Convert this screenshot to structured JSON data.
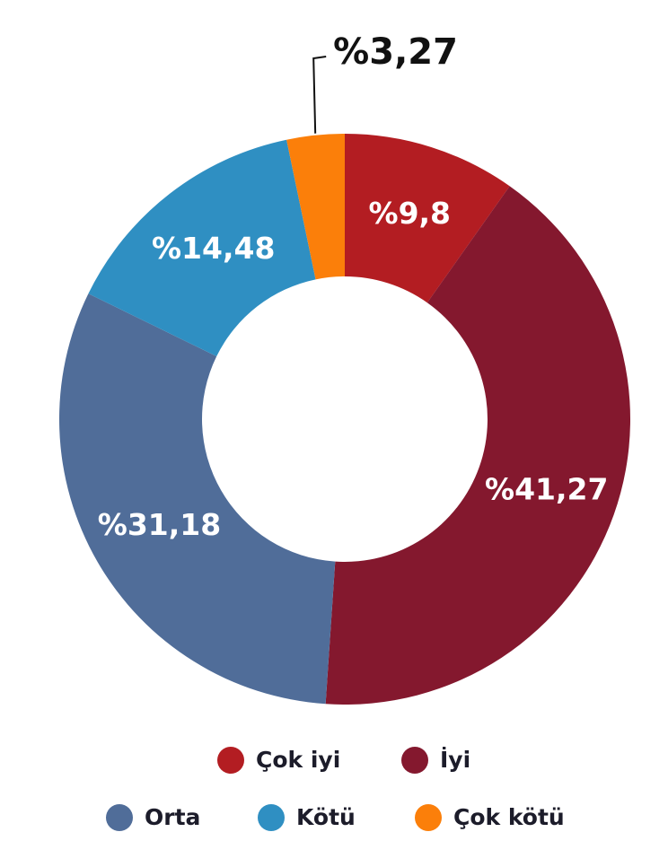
{
  "chart_data": {
    "type": "donut",
    "categories": [
      "Çok iyi",
      "İyi",
      "Orta",
      "Kötü",
      "Çok kötü"
    ],
    "values": [
      9.8,
      41.27,
      31.18,
      14.48,
      3.27
    ],
    "value_labels": [
      "%9,8",
      "%41,27",
      "%31,18",
      "%14,48",
      "%3,27"
    ],
    "colors": [
      "#b31d22",
      "#84182e",
      "#506d99",
      "#2f8fc2",
      "#fb7f0a"
    ]
  }
}
